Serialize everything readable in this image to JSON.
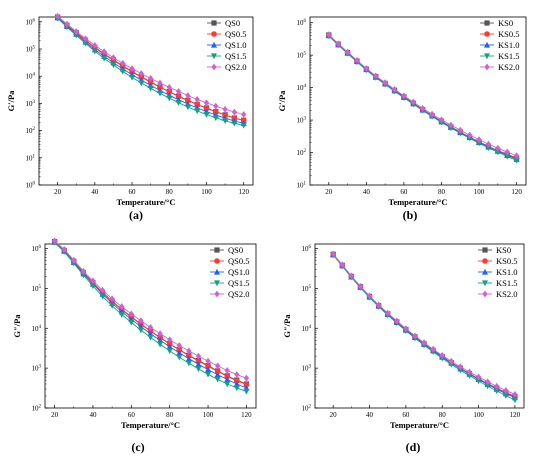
{
  "chart_data": [
    {
      "type": "line",
      "title": "",
      "panel_label": "(a)",
      "xlabel": "Temperature/°C",
      "ylabel": "G′/Pa",
      "log_y": true,
      "xlim": [
        10,
        125
      ],
      "ylim": [
        1,
        1500000
      ],
      "x_ticks": [
        "20",
        "40",
        "60",
        "80",
        "100",
        "120"
      ],
      "y_ticks": [
        {
          "base": "10",
          "exp": "0"
        },
        {
          "base": "10",
          "exp": "1"
        },
        {
          "base": "10",
          "exp": "2"
        },
        {
          "base": "10",
          "exp": "3"
        },
        {
          "base": "10",
          "exp": "4"
        },
        {
          "base": "10",
          "exp": "5"
        },
        {
          "base": "10",
          "exp": "6"
        }
      ],
      "legend_position": "top-right",
      "grid": false,
      "x": [
        20,
        25,
        30,
        35,
        40,
        45,
        50,
        55,
        60,
        65,
        70,
        75,
        80,
        85,
        90,
        95,
        100,
        105,
        110,
        115,
        120
      ],
      "series": [
        {
          "name": "QS0",
          "color": "#555555",
          "marker": "square",
          "values": [
            1500000,
            750000,
            400000,
            210000,
            115000,
            66000,
            40000,
            24000,
            15000,
            9500,
            6200,
            4000,
            2700,
            1850,
            1300,
            920,
            680,
            500,
            380,
            290,
            240
          ]
        },
        {
          "name": "QS0.5",
          "color": "#ff3b30",
          "marker": "circle",
          "values": [
            1450000,
            720000,
            380000,
            200000,
            110000,
            63000,
            38000,
            23000,
            14500,
            9200,
            6000,
            3950,
            2650,
            1800,
            1260,
            900,
            660,
            490,
            370,
            285,
            235
          ]
        },
        {
          "name": "QS1.0",
          "color": "#1f5fff",
          "marker": "triangle-up",
          "values": [
            1400000,
            680000,
            350000,
            180000,
            95000,
            54000,
            31000,
            18500,
            11500,
            7200,
            4600,
            3000,
            2000,
            1350,
            950,
            680,
            500,
            375,
            285,
            225,
            185
          ]
        },
        {
          "name": "QS1.5",
          "color": "#11a37f",
          "marker": "triangle-down",
          "values": [
            1350000,
            640000,
            320000,
            160000,
            82000,
            45000,
            26000,
            15000,
            9000,
            5600,
            3600,
            2350,
            1560,
            1060,
            740,
            530,
            390,
            295,
            230,
            185,
            155
          ]
        },
        {
          "name": "QS2.0",
          "color": "#d35fd3",
          "marker": "diamond",
          "values": [
            1600000,
            820000,
            440000,
            240000,
            135000,
            80000,
            48000,
            30000,
            19000,
            12500,
            8300,
            5600,
            3900,
            2750,
            1950,
            1400,
            1050,
            790,
            610,
            480,
            390
          ]
        }
      ]
    },
    {
      "type": "line",
      "title": "",
      "panel_label": "(b)",
      "xlabel": "Temperature/°C",
      "ylabel": "G′/Pa",
      "log_y": true,
      "xlim": [
        10,
        125
      ],
      "ylim": [
        10,
        1500000
      ],
      "x_ticks": [
        "20",
        "40",
        "60",
        "80",
        "100",
        "120"
      ],
      "y_ticks": [
        {
          "base": "10",
          "exp": "1"
        },
        {
          "base": "10",
          "exp": "2"
        },
        {
          "base": "10",
          "exp": "3"
        },
        {
          "base": "10",
          "exp": "4"
        },
        {
          "base": "10",
          "exp": "5"
        },
        {
          "base": "10",
          "exp": "6"
        }
      ],
      "legend_position": "top-right",
      "grid": false,
      "x": [
        20,
        25,
        30,
        35,
        40,
        45,
        50,
        55,
        60,
        65,
        70,
        75,
        80,
        85,
        90,
        95,
        100,
        105,
        110,
        115,
        120
      ],
      "series": [
        {
          "name": "KS0",
          "color": "#555555",
          "marker": "square",
          "values": [
            420000,
            220000,
            120000,
            66000,
            37000,
            22000,
            13500,
            8300,
            5200,
            3300,
            2100,
            1380,
            920,
            620,
            430,
            300,
            215,
            155,
            115,
            88,
            68
          ]
        },
        {
          "name": "KS0.5",
          "color": "#ff3b30",
          "marker": "circle",
          "values": [
            410000,
            215000,
            118000,
            65000,
            36500,
            21500,
            13200,
            8100,
            5100,
            3250,
            2080,
            1360,
            900,
            610,
            420,
            295,
            210,
            152,
            112,
            85,
            65
          ]
        },
        {
          "name": "KS1.0",
          "color": "#1f5fff",
          "marker": "triangle-up",
          "values": [
            400000,
            210000,
            115000,
            64000,
            36000,
            21000,
            13000,
            8000,
            5000,
            3200,
            2050,
            1340,
            885,
            600,
            415,
            290,
            205,
            148,
            110,
            82,
            62
          ]
        },
        {
          "name": "KS1.5",
          "color": "#11a37f",
          "marker": "triangle-down",
          "values": [
            390000,
            205000,
            112000,
            62000,
            35000,
            20500,
            12600,
            7700,
            4850,
            3100,
            1980,
            1290,
            850,
            575,
            395,
            275,
            195,
            140,
            103,
            76,
            57
          ]
        },
        {
          "name": "KS2.0",
          "color": "#d35fd3",
          "marker": "diamond",
          "values": [
            430000,
            225000,
            125000,
            69000,
            39000,
            23000,
            14200,
            8800,
            5600,
            3600,
            2300,
            1520,
            1020,
            700,
            490,
            345,
            250,
            182,
            136,
            104,
            80
          ]
        }
      ]
    },
    {
      "type": "line",
      "title": "",
      "panel_label": "(c)",
      "xlabel": "Temperature/°C",
      "ylabel": "G″/Pa",
      "log_y": true,
      "xlim": [
        15,
        125
      ],
      "ylim": [
        100,
        1300000
      ],
      "x_ticks": [
        "20",
        "40",
        "60",
        "80",
        "100",
        "120"
      ],
      "y_ticks": [
        {
          "base": "10",
          "exp": "2"
        },
        {
          "base": "10",
          "exp": "3"
        },
        {
          "base": "10",
          "exp": "4"
        },
        {
          "base": "10",
          "exp": "5"
        },
        {
          "base": "10",
          "exp": "6"
        }
      ],
      "legend_position": "top-right",
      "grid": false,
      "x": [
        20,
        25,
        30,
        35,
        40,
        45,
        50,
        55,
        60,
        65,
        70,
        75,
        80,
        85,
        90,
        95,
        100,
        105,
        110,
        115,
        120
      ],
      "series": [
        {
          "name": "QS0",
          "color": "#555555",
          "marker": "square",
          "values": [
            1500000,
            900000,
            480000,
            250000,
            140000,
            80000,
            48000,
            30000,
            19500,
            12800,
            8600,
            5900,
            4100,
            2900,
            2100,
            1550,
            1150,
            850,
            640,
            500,
            400
          ]
        },
        {
          "name": "QS0.5",
          "color": "#ff3b30",
          "marker": "circle",
          "values": [
            1480000,
            880000,
            470000,
            245000,
            137000,
            78000,
            47000,
            29000,
            19000,
            12500,
            8400,
            5800,
            4000,
            2850,
            2050,
            1500,
            1120,
            830,
            620,
            480,
            390
          ]
        },
        {
          "name": "QS1.0",
          "color": "#1f5fff",
          "marker": "triangle-up",
          "values": [
            1450000,
            860000,
            450000,
            232000,
            128000,
            72000,
            42500,
            26000,
            16800,
            11000,
            7300,
            5000,
            3450,
            2420,
            1720,
            1250,
            920,
            690,
            520,
            400,
            320
          ]
        },
        {
          "name": "QS1.5",
          "color": "#11a37f",
          "marker": "triangle-down",
          "values": [
            1420000,
            830000,
            430000,
            215000,
            115000,
            63000,
            37000,
            22000,
            14000,
            9000,
            5900,
            3950,
            2700,
            1880,
            1330,
            960,
            700,
            525,
            400,
            320,
            260
          ]
        },
        {
          "name": "QS2.0",
          "color": "#d35fd3",
          "marker": "diamond",
          "values": [
            1550000,
            950000,
            510000,
            270000,
            155000,
            90000,
            55000,
            35000,
            23000,
            15500,
            10500,
            7300,
            5150,
            3700,
            2700,
            2000,
            1500,
            1140,
            870,
            690,
            560
          ]
        }
      ]
    },
    {
      "type": "line",
      "title": "",
      "panel_label": "(d)",
      "xlabel": "Temperature/°C",
      "ylabel": "G″/Pa",
      "log_y": true,
      "xlim": [
        10,
        125
      ],
      "ylim": [
        100,
        1300000
      ],
      "x_ticks": [
        "20",
        "40",
        "60",
        "80",
        "100",
        "120"
      ],
      "y_ticks": [
        {
          "base": "10",
          "exp": "2"
        },
        {
          "base": "10",
          "exp": "3"
        },
        {
          "base": "10",
          "exp": "4"
        },
        {
          "base": "10",
          "exp": "5"
        },
        {
          "base": "10",
          "exp": "6"
        }
      ],
      "legend_position": "top-right",
      "grid": false,
      "x": [
        20,
        25,
        30,
        35,
        40,
        45,
        50,
        55,
        60,
        65,
        70,
        75,
        80,
        85,
        90,
        95,
        100,
        105,
        110,
        115,
        120
      ],
      "series": [
        {
          "name": "KS0",
          "color": "#555555",
          "marker": "square",
          "values": [
            720000,
            380000,
            200000,
            110000,
            63000,
            37000,
            23000,
            14500,
            9300,
            6100,
            4100,
            2800,
            1950,
            1380,
            1000,
            730,
            540,
            410,
            315,
            245,
            195
          ]
        },
        {
          "name": "KS0.5",
          "color": "#ff3b30",
          "marker": "circle",
          "values": [
            710000,
            375000,
            198000,
            108000,
            62000,
            36500,
            22700,
            14300,
            9200,
            6000,
            4050,
            2760,
            1920,
            1360,
            980,
            720,
            530,
            400,
            305,
            238,
            188
          ]
        },
        {
          "name": "KS1.0",
          "color": "#1f5fff",
          "marker": "triangle-up",
          "values": [
            700000,
            370000,
            195000,
            107000,
            61000,
            36000,
            22300,
            14000,
            9000,
            5900,
            3980,
            2720,
            1890,
            1340,
            965,
            705,
            520,
            392,
            298,
            230,
            182
          ]
        },
        {
          "name": "KS1.5",
          "color": "#11a37f",
          "marker": "triangle-down",
          "values": [
            690000,
            362000,
            190000,
            104000,
            59000,
            34800,
            21500,
            13500,
            8650,
            5650,
            3780,
            2560,
            1770,
            1240,
            890,
            645,
            475,
            355,
            268,
            205,
            160
          ]
        },
        {
          "name": "KS2.0",
          "color": "#d35fd3",
          "marker": "diamond",
          "values": [
            730000,
            390000,
            206000,
            113000,
            65000,
            38500,
            24000,
            15200,
            9800,
            6450,
            4350,
            2990,
            2090,
            1490,
            1090,
            800,
            600,
            455,
            350,
            275,
            220
          ]
        }
      ]
    }
  ]
}
